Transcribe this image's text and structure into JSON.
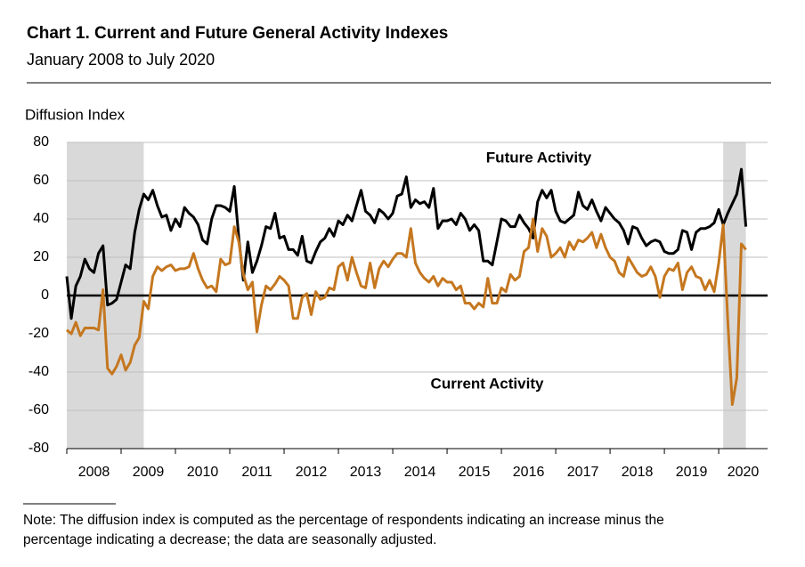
{
  "chart_data": {
    "type": "line",
    "title": "Chart 1. Current and Future General Activity Indexes",
    "subtitle": "January 2008 to July 2020",
    "y_label": "Diffusion Index",
    "note": [
      "Note: The diffusion index is computed as the percentage of respondents indicating an increase minus the",
      "percentage indicating a decrease; the data are seasonally adjusted."
    ],
    "ylim": [
      -80,
      80
    ],
    "yticks": [
      -80,
      -60,
      -40,
      -20,
      0,
      20,
      40,
      60,
      80
    ],
    "xlim": [
      2008,
      2020.9
    ],
    "xticks": [
      2008,
      2009,
      2010,
      2011,
      2012,
      2013,
      2014,
      2015,
      2016,
      2017,
      2018,
      2019,
      2020
    ],
    "grid": true,
    "zero_line": true,
    "shaded_periods": [
      {
        "start": 2008,
        "end": 2009.417,
        "color": "#d9d9d9"
      },
      {
        "start": 2020.083,
        "end": 2020.5,
        "color": "#d9d9d9"
      }
    ],
    "x": [
      2008,
      2008.083,
      2008.167,
      2008.25,
      2008.333,
      2008.417,
      2008.5,
      2008.583,
      2008.667,
      2008.75,
      2008.833,
      2008.917,
      2009,
      2009.083,
      2009.167,
      2009.25,
      2009.333,
      2009.417,
      2009.5,
      2009.583,
      2009.667,
      2009.75,
      2009.833,
      2009.917,
      2010,
      2010.083,
      2010.167,
      2010.25,
      2010.333,
      2010.417,
      2010.5,
      2010.583,
      2010.667,
      2010.75,
      2010.833,
      2010.917,
      2011,
      2011.083,
      2011.167,
      2011.25,
      2011.333,
      2011.417,
      2011.5,
      2011.583,
      2011.667,
      2011.75,
      2011.833,
      2011.917,
      2012,
      2012.083,
      2012.167,
      2012.25,
      2012.333,
      2012.417,
      2012.5,
      2012.583,
      2012.667,
      2012.75,
      2012.833,
      2012.917,
      2013,
      2013.083,
      2013.167,
      2013.25,
      2013.333,
      2013.417,
      2013.5,
      2013.583,
      2013.667,
      2013.75,
      2013.833,
      2013.917,
      2014,
      2014.083,
      2014.167,
      2014.25,
      2014.333,
      2014.417,
      2014.5,
      2014.583,
      2014.667,
      2014.75,
      2014.833,
      2014.917,
      2015,
      2015.083,
      2015.167,
      2015.25,
      2015.333,
      2015.417,
      2015.5,
      2015.583,
      2015.667,
      2015.75,
      2015.833,
      2015.917,
      2016,
      2016.083,
      2016.167,
      2016.25,
      2016.333,
      2016.417,
      2016.5,
      2016.583,
      2016.667,
      2016.75,
      2016.833,
      2016.917,
      2017,
      2017.083,
      2017.167,
      2017.25,
      2017.333,
      2017.417,
      2017.5,
      2017.583,
      2017.667,
      2017.75,
      2017.833,
      2017.917,
      2018,
      2018.083,
      2018.167,
      2018.25,
      2018.333,
      2018.417,
      2018.5,
      2018.583,
      2018.667,
      2018.75,
      2018.833,
      2018.917,
      2019,
      2019.083,
      2019.167,
      2019.25,
      2019.333,
      2019.417,
      2019.5,
      2019.583,
      2019.667,
      2019.75,
      2019.833,
      2019.917,
      2020,
      2020.083,
      2020.167,
      2020.25,
      2020.333,
      2020.417,
      2020.5
    ],
    "series": [
      {
        "name": "Future Activity",
        "color": "#000000",
        "values": [
          10,
          -12,
          5,
          10,
          19,
          14,
          12,
          22,
          26,
          -5,
          -4,
          -2,
          7,
          16,
          14,
          33,
          45,
          53,
          50,
          55,
          47,
          41,
          42,
          34,
          40,
          36,
          46,
          43,
          41,
          37,
          29,
          27,
          40,
          47,
          47,
          46,
          44,
          57,
          30,
          8,
          28,
          12,
          18,
          26,
          36,
          35,
          43,
          30,
          31,
          24,
          24,
          21,
          31,
          18,
          17,
          23,
          28,
          30,
          35,
          31,
          39,
          37,
          42,
          39,
          47,
          55,
          44,
          42,
          38,
          45,
          43,
          40,
          43,
          52,
          53,
          62,
          46,
          50,
          48,
          49,
          46,
          56,
          35,
          39,
          39,
          40,
          37,
          43,
          40,
          34,
          37,
          34,
          18,
          18,
          16,
          28,
          40,
          39,
          36,
          36,
          42,
          38,
          35,
          30,
          49,
          55,
          51,
          55,
          44,
          39,
          38,
          40,
          42,
          54,
          47,
          45,
          50,
          44,
          39,
          46,
          43,
          40,
          38,
          34,
          27,
          36,
          35,
          30,
          26,
          28,
          29,
          28,
          23,
          22,
          22,
          24,
          34,
          33,
          24,
          33,
          35,
          35,
          36,
          38,
          45,
          37,
          43,
          48,
          53,
          66,
          36
        ]
      },
      {
        "name": "Current Activity",
        "color": "#c5771f",
        "values": [
          -18,
          -20,
          -14,
          -21,
          -17,
          -17,
          -17,
          -18,
          3,
          -38,
          -41,
          -37,
          -31,
          -39,
          -35,
          -26,
          -22,
          -3,
          -7,
          10,
          15,
          13,
          15,
          16,
          13,
          14,
          14,
          15,
          22,
          14,
          8,
          4,
          5,
          2,
          19,
          16,
          17,
          36,
          28,
          11,
          3,
          7,
          -19,
          -5,
          5,
          3,
          6,
          10,
          8,
          5,
          -12,
          -12,
          -1,
          1,
          -10,
          2,
          -2,
          -1,
          4,
          3,
          15,
          17,
          8,
          20,
          12,
          5,
          4,
          17,
          4,
          14,
          18,
          15,
          19,
          22,
          22,
          20,
          35,
          17,
          12,
          9,
          7,
          10,
          5,
          9,
          7,
          7,
          3,
          5,
          -4,
          -4,
          -7,
          -4,
          -6,
          9,
          -4,
          -4,
          4,
          2,
          11,
          8,
          10,
          23,
          25,
          40,
          23,
          35,
          31,
          20,
          22,
          25,
          20,
          28,
          24,
          29,
          28,
          30,
          33,
          25,
          32,
          25,
          20,
          18,
          12,
          10,
          20,
          16,
          12,
          10,
          11,
          15,
          10,
          -1,
          10,
          14,
          13,
          17,
          3,
          12,
          15,
          10,
          9,
          3,
          8,
          2,
          17,
          37,
          -13,
          -57,
          -43,
          27,
          24
        ]
      }
    ]
  }
}
